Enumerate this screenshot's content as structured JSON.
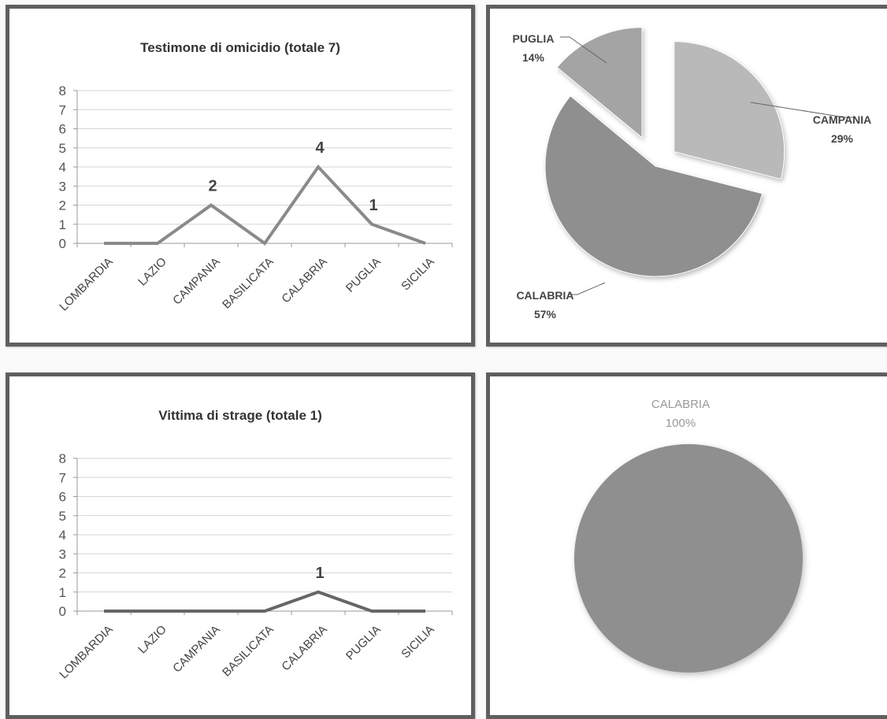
{
  "chart_data": [
    {
      "type": "line",
      "title": "Testimone di omicidio (totale 7)",
      "categories": [
        "LOMBARDIA",
        "LAZIO",
        "CAMPANIA",
        "BASILICATA",
        "CALABRIA",
        "PUGLIA",
        "SICILIA"
      ],
      "values": [
        0,
        0,
        2,
        0,
        4,
        1,
        0
      ],
      "data_labels": [
        "",
        "",
        "2",
        "",
        "4",
        "1",
        ""
      ],
      "ylim": [
        0,
        8
      ],
      "yticks": [
        "0",
        "1",
        "2",
        "3",
        "4",
        "5",
        "6",
        "7",
        "8"
      ],
      "grid": true,
      "color": "#8a8a8a"
    },
    {
      "type": "pie",
      "slices": [
        {
          "label": "CAMPANIA",
          "value": 29,
          "pct": "29%",
          "color": "#b9b9b9"
        },
        {
          "label": "CALABRIA",
          "value": 57,
          "pct": "57%",
          "color": "#8f8f8f"
        },
        {
          "label": "PUGLIA",
          "value": 14,
          "pct": "14%",
          "color": "#a4a4a4"
        }
      ]
    },
    {
      "type": "line",
      "title": "Vittima di strage (totale 1)",
      "categories": [
        "LOMBARDIA",
        "LAZIO",
        "CAMPANIA",
        "BASILICATA",
        "CALABRIA",
        "PUGLIA",
        "SICILIA"
      ],
      "values": [
        0,
        0,
        0,
        0,
        1,
        0,
        0
      ],
      "data_labels": [
        "",
        "",
        "",
        "",
        "1",
        "",
        ""
      ],
      "ylim": [
        0,
        8
      ],
      "yticks": [
        "0",
        "1",
        "2",
        "3",
        "4",
        "5",
        "6",
        "7",
        "8"
      ],
      "grid": true,
      "color": "#666666"
    },
    {
      "type": "pie",
      "slices": [
        {
          "label": "CALABRIA",
          "value": 100,
          "pct": "100%",
          "color": "#8f8f8f"
        }
      ]
    }
  ]
}
